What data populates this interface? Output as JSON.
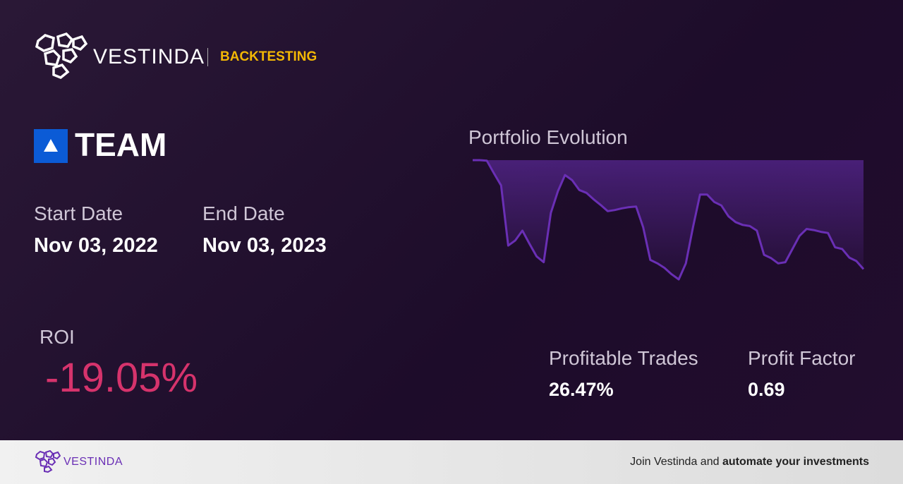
{
  "header": {
    "brand": "VESTINDA",
    "section": "BACKTESTING"
  },
  "asset": {
    "ticker": "TEAM"
  },
  "dates": {
    "start_label": "Start Date",
    "start": "Nov 03, 2022",
    "end_label": "End Date",
    "end": "Nov 03, 2023"
  },
  "roi": {
    "label": "ROI",
    "value": "-19.05%"
  },
  "stats": {
    "profitable_label": "Profitable Trades",
    "profitable": "26.47%",
    "factor_label": "Profit Factor",
    "factor": "0.69"
  },
  "chart_data": {
    "type": "line",
    "title": "Portfolio Evolution",
    "color": "#6a2fb5",
    "values": [
      100,
      100,
      99.9,
      97.7,
      95.6,
      85.1,
      86.0,
      87.7,
      85.4,
      83.2,
      82.2,
      90.8,
      94.6,
      97.4,
      96.5,
      94.8,
      94.3,
      93.2,
      92.2,
      91.1,
      91.3,
      91.6,
      91.8,
      91.9,
      88.3,
      82.6,
      82.0,
      81.2,
      80.1,
      79.2,
      82.0,
      88.3,
      94.0,
      94.0,
      92.7,
      92.1,
      90.2,
      89.2,
      88.7,
      88.5,
      87.7,
      83.5,
      82.9,
      82.0,
      82.2,
      84.5,
      86.8,
      88.0,
      87.8,
      87.5,
      87.3,
      84.8,
      84.5,
      83.0,
      82.4,
      81.0
    ]
  },
  "footer": {
    "brand": "VESTINDA",
    "text": "Join Vestinda and ",
    "bold": "automate your investments"
  }
}
